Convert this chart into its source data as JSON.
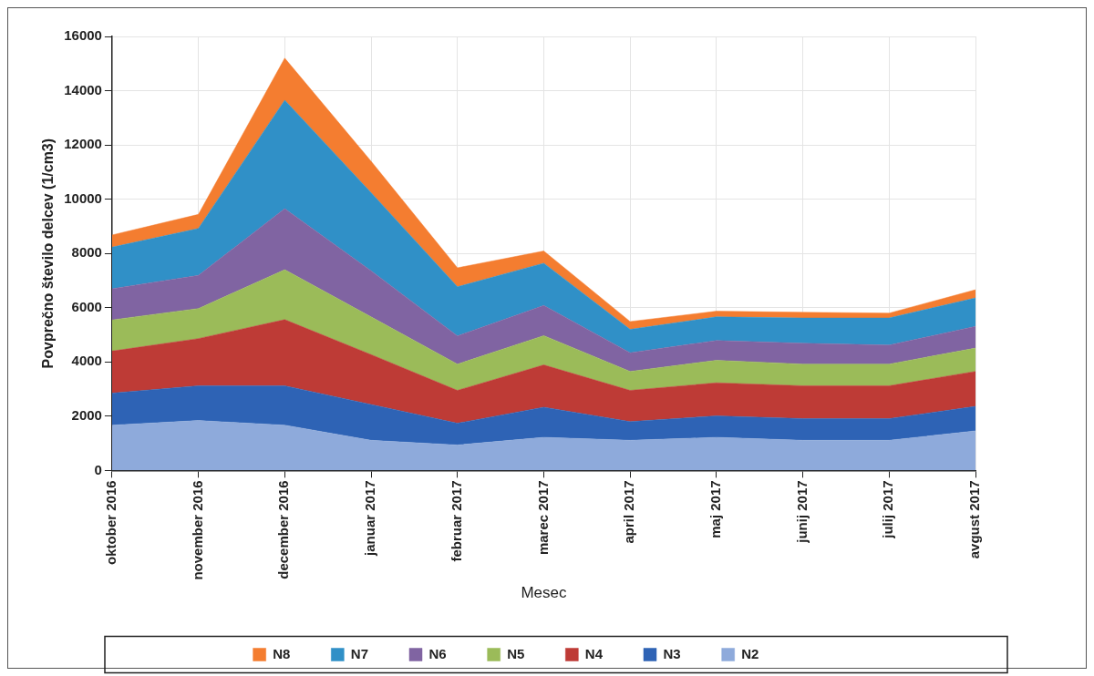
{
  "chart_data": {
    "type": "area",
    "stacked": true,
    "xlabel": "Mesec",
    "ylabel": "Povprečno število delcev (1/cm3)",
    "categories": [
      "oktober 2016",
      "november 2016",
      "december 2016",
      "januar 2017",
      "februar 2017",
      "marec 2017",
      "april 2017",
      "maj 2017",
      "junij 2017",
      "julij 2017",
      "avgust 2017"
    ],
    "ylim": [
      0,
      16000
    ],
    "yticks": [
      0,
      2000,
      4000,
      6000,
      8000,
      10000,
      12000,
      14000,
      16000
    ],
    "grid": true,
    "legend": "bottom",
    "series": [
      {
        "name": "N2",
        "color": "#8eaadb",
        "values": [
          1670,
          1840,
          1670,
          1110,
          940,
          1220,
          1110,
          1220,
          1110,
          1110,
          1460
        ]
      },
      {
        "name": "N3",
        "color": "#2e63b5",
        "values": [
          1180,
          1280,
          1450,
          1320,
          800,
          1110,
          690,
          790,
          800,
          800,
          900
        ]
      },
      {
        "name": "N4",
        "color": "#be3b36",
        "values": [
          1550,
          1740,
          2440,
          1840,
          1210,
          1560,
          1150,
          1220,
          1210,
          1210,
          1290
        ]
      },
      {
        "name": "N5",
        "color": "#9bbb59",
        "values": [
          1150,
          1110,
          1840,
          1390,
          970,
          1080,
          700,
          830,
          800,
          800,
          860
        ]
      },
      {
        "name": "N6",
        "color": "#8064a2",
        "values": [
          1150,
          1220,
          2250,
          1700,
          1040,
          1110,
          690,
          730,
          770,
          700,
          800
        ]
      },
      {
        "name": "N7",
        "color": "#3090c7",
        "values": [
          1530,
          1730,
          4000,
          2880,
          1810,
          1560,
          860,
          870,
          930,
          1000,
          1050
        ]
      },
      {
        "name": "N8",
        "color": "#f47d30",
        "values": [
          450,
          520,
          1550,
          1160,
          700,
          450,
          290,
          210,
          210,
          180,
          300
        ]
      }
    ]
  }
}
